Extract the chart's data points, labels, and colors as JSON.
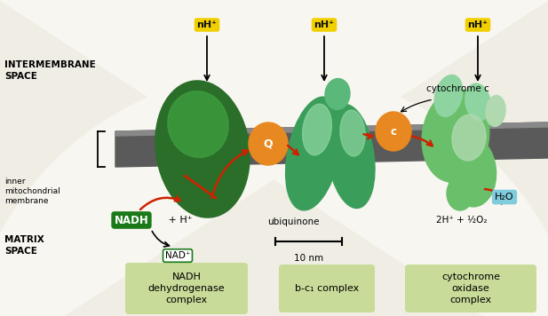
{
  "bg_color": "#f0ede5",
  "membrane_dark": "#5a5a5a",
  "membrane_mid": "#888888",
  "membrane_light": "#aaaaaa",
  "c1_dark": "#2a6e2a",
  "c1_mid": "#3d9e3d",
  "c1_light": "#6abf6a",
  "c2_dark": "#3a9e5a",
  "c2_mid": "#5ab87a",
  "c2_light": "#8dd4a0",
  "c3_dark": "#6abf6a",
  "c3_mid": "#8dd4a0",
  "c3_light": "#b0d9b0",
  "orange": "#e88820",
  "red_arrow": "#cc2200",
  "nadh_green": "#1a7a1a",
  "yellow_box": "#f0d000",
  "blue_box": "#80ccdd",
  "label_box": "#c8db98",
  "white": "#ffffff",
  "black": "#111111",
  "nH_label": "nH⁺",
  "Q_label": "Q",
  "c_label": "c",
  "cytc_text": "cytochrome c",
  "ubiq_text": "ubiquinone",
  "scale_text": "10 nm",
  "h2o_text": "H₂O",
  "h2_text": "2H⁺ + ½O₂",
  "nadh_text": "NADH",
  "hplus_text": " + H⁺",
  "nad_text": "NAD⁺",
  "inter_text": "INTERMEMBRANE\nSPACE",
  "matrix_text": "MATRIX\nSPACE",
  "mem_text": "inner\nmitochondrial\nmembrane",
  "box1_text": "NADH\ndehydrogenase\ncomplex",
  "box2_text": "b-c₁ complex",
  "box3_text": "cytochrome\noxidase\ncomplex"
}
